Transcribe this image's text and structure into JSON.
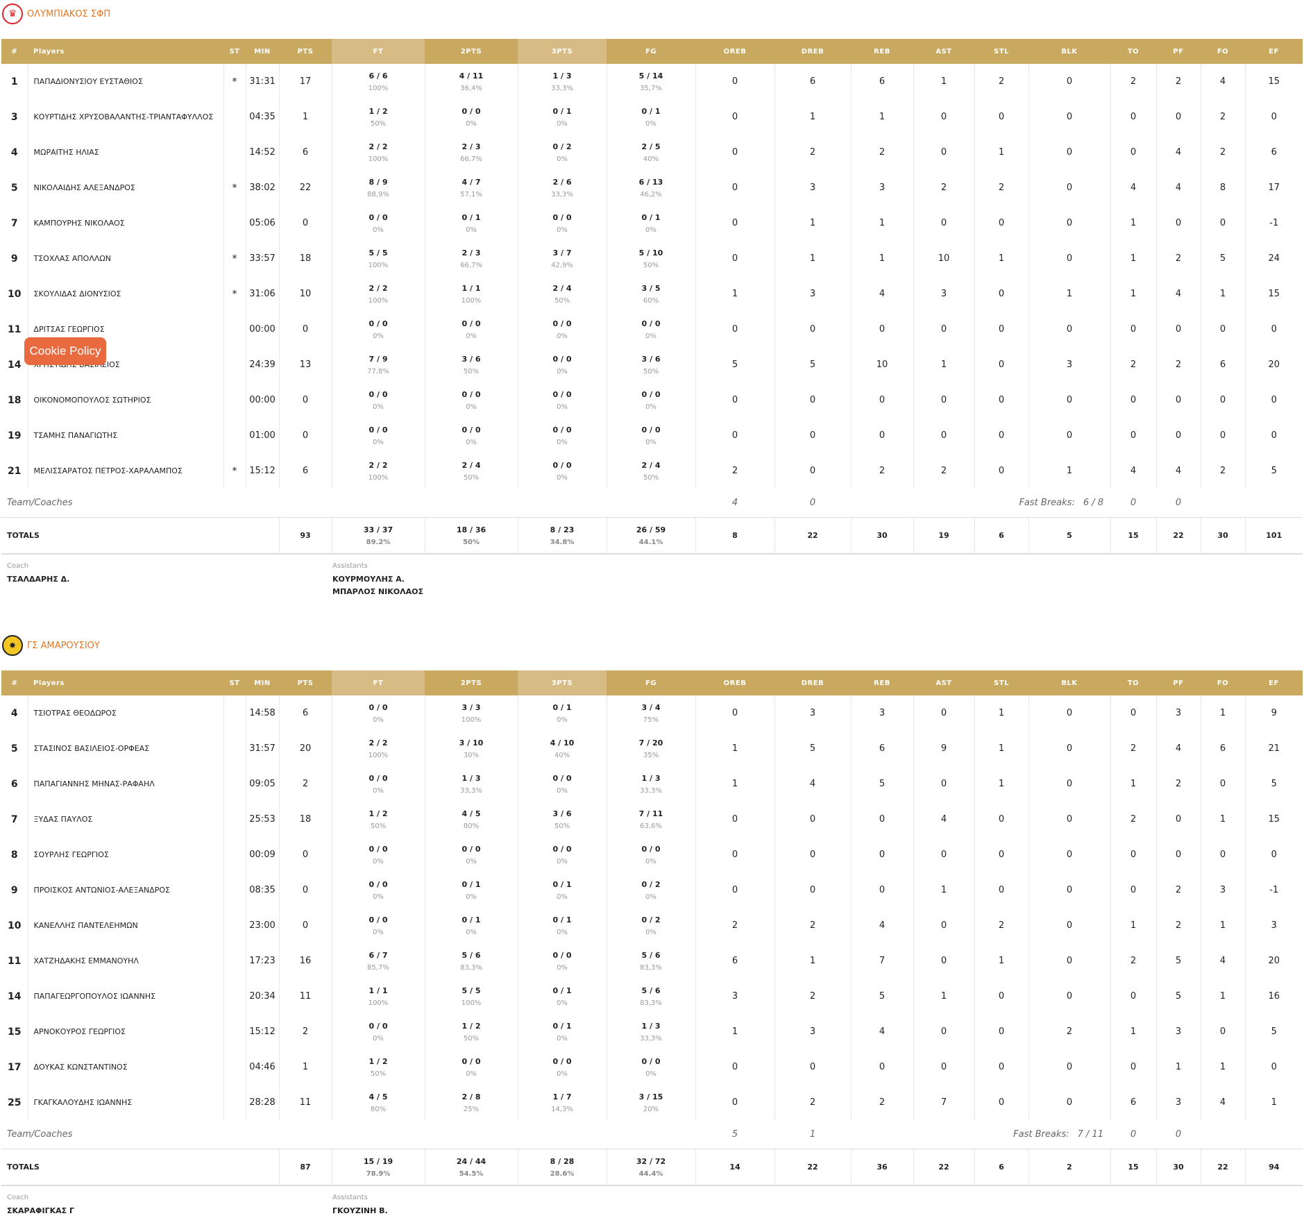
{
  "columns": [
    "#",
    "Players",
    "ST",
    "MIN",
    "PTS",
    "FT",
    "2PTS",
    "3PTS",
    "FG",
    "OREB",
    "DREB",
    "REB",
    "AST",
    "STL",
    "BLK",
    "TO",
    "PF",
    "FO",
    "EF"
  ],
  "cookie_button": "Cookie Policy",
  "labels": {
    "team_coaches": "Team/Coaches",
    "fast_breaks": "Fast Breaks:",
    "totals": "TOTALS",
    "coach": "Coach",
    "assistants": "Assistants"
  },
  "teams": [
    {
      "name": "ΟΛΥΜΠΙΑΚΟΣ ΣΦΠ",
      "logo_icon": "olympiacos-logo",
      "players": [
        {
          "num": "1",
          "name": "ΠΑΠΑΔΙΟΝΥΣΙΟΥ ΕΥΣΤΑΘΙΟΣ",
          "st": "*",
          "min": "31:31",
          "pts": "17",
          "ft": "6 / 6",
          "ft_pct": "100%",
          "p2": "4 / 11",
          "p2_pct": "36,4%",
          "p3": "1 / 3",
          "p3_pct": "33,3%",
          "fg": "5 / 14",
          "fg_pct": "35,7%",
          "oreb": "0",
          "dreb": "6",
          "reb": "6",
          "ast": "1",
          "stl": "2",
          "blk": "0",
          "to": "2",
          "pf": "2",
          "fo": "4",
          "ef": "15"
        },
        {
          "num": "3",
          "name": "ΚΟΥΡΤΙΔΗΣ ΧΡΥΣΟΒΑΛΑΝΤΗΣ-ΤΡΙΑΝΤΑΦΥΛΛΟΣ",
          "st": "",
          "min": "04:35",
          "pts": "1",
          "ft": "1 / 2",
          "ft_pct": "50%",
          "p2": "0 / 0",
          "p2_pct": "0%",
          "p3": "0 / 1",
          "p3_pct": "0%",
          "fg": "0 / 1",
          "fg_pct": "0%",
          "oreb": "0",
          "dreb": "1",
          "reb": "1",
          "ast": "0",
          "stl": "0",
          "blk": "0",
          "to": "0",
          "pf": "0",
          "fo": "2",
          "ef": "0"
        },
        {
          "num": "4",
          "name": "ΜΩΡΑΙΤΗΣ ΗΛΙΑΣ",
          "st": "",
          "min": "14:52",
          "pts": "6",
          "ft": "2 / 2",
          "ft_pct": "100%",
          "p2": "2 / 3",
          "p2_pct": "66,7%",
          "p3": "0 / 2",
          "p3_pct": "0%",
          "fg": "2 / 5",
          "fg_pct": "40%",
          "oreb": "0",
          "dreb": "2",
          "reb": "2",
          "ast": "0",
          "stl": "1",
          "blk": "0",
          "to": "0",
          "pf": "4",
          "fo": "2",
          "ef": "6"
        },
        {
          "num": "5",
          "name": "ΝΙΚΟΛΑΙΔΗΣ ΑΛΕΞΑΝΔΡΟΣ",
          "st": "*",
          "min": "38:02",
          "pts": "22",
          "ft": "8 / 9",
          "ft_pct": "88,9%",
          "p2": "4 / 7",
          "p2_pct": "57,1%",
          "p3": "2 / 6",
          "p3_pct": "33,3%",
          "fg": "6 / 13",
          "fg_pct": "46,2%",
          "oreb": "0",
          "dreb": "3",
          "reb": "3",
          "ast": "2",
          "stl": "2",
          "blk": "0",
          "to": "4",
          "pf": "4",
          "fo": "8",
          "ef": "17"
        },
        {
          "num": "7",
          "name": "ΚΑΜΠΟΥΡΗΣ ΝΙΚΟΛΑΟΣ",
          "st": "",
          "min": "05:06",
          "pts": "0",
          "ft": "0 / 0",
          "ft_pct": "0%",
          "p2": "0 / 1",
          "p2_pct": "0%",
          "p3": "0 / 0",
          "p3_pct": "0%",
          "fg": "0 / 1",
          "fg_pct": "0%",
          "oreb": "0",
          "dreb": "1",
          "reb": "1",
          "ast": "0",
          "stl": "0",
          "blk": "0",
          "to": "1",
          "pf": "0",
          "fo": "0",
          "ef": "-1"
        },
        {
          "num": "9",
          "name": "ΤΣΟΧΛΑΣ ΑΠΟΛΛΩΝ",
          "st": "*",
          "min": "33:57",
          "pts": "18",
          "ft": "5 / 5",
          "ft_pct": "100%",
          "p2": "2 / 3",
          "p2_pct": "66,7%",
          "p3": "3 / 7",
          "p3_pct": "42,9%",
          "fg": "5 / 10",
          "fg_pct": "50%",
          "oreb": "0",
          "dreb": "1",
          "reb": "1",
          "ast": "10",
          "stl": "1",
          "blk": "0",
          "to": "1",
          "pf": "2",
          "fo": "5",
          "ef": "24"
        },
        {
          "num": "10",
          "name": "ΣΚΟΥΛΙΔΑΣ ΔΙΟΝΥΣΙΟΣ",
          "st": "*",
          "min": "31:06",
          "pts": "10",
          "ft": "2 / 2",
          "ft_pct": "100%",
          "p2": "1 / 1",
          "p2_pct": "100%",
          "p3": "2 / 4",
          "p3_pct": "50%",
          "fg": "3 / 5",
          "fg_pct": "60%",
          "oreb": "1",
          "dreb": "3",
          "reb": "4",
          "ast": "3",
          "stl": "0",
          "blk": "1",
          "to": "1",
          "pf": "4",
          "fo": "1",
          "ef": "15"
        },
        {
          "num": "11",
          "name": "ΔΡΙΤΣΑΣ ΓΕΩΡΓΙΟΣ",
          "st": "",
          "min": "00:00",
          "pts": "0",
          "ft": "0 / 0",
          "ft_pct": "0%",
          "p2": "0 / 0",
          "p2_pct": "0%",
          "p3": "0 / 0",
          "p3_pct": "0%",
          "fg": "0 / 0",
          "fg_pct": "0%",
          "oreb": "0",
          "dreb": "0",
          "reb": "0",
          "ast": "0",
          "stl": "0",
          "blk": "0",
          "to": "0",
          "pf": "0",
          "fo": "0",
          "ef": "0"
        },
        {
          "num": "14",
          "name": "ΧΡΗΣΤΙΔΗΣ ΒΑΣΙΛΕΙΟΣ",
          "st": "",
          "min": "24:39",
          "pts": "13",
          "ft": "7 / 9",
          "ft_pct": "77,8%",
          "p2": "3 / 6",
          "p2_pct": "50%",
          "p3": "0 / 0",
          "p3_pct": "0%",
          "fg": "3 / 6",
          "fg_pct": "50%",
          "oreb": "5",
          "dreb": "5",
          "reb": "10",
          "ast": "1",
          "stl": "0",
          "blk": "3",
          "to": "2",
          "pf": "2",
          "fo": "6",
          "ef": "20"
        },
        {
          "num": "18",
          "name": "ΟΙΚΟΝΟΜΟΠΟΥΛΟΣ ΣΩΤΗΡΙΟΣ",
          "st": "",
          "min": "00:00",
          "pts": "0",
          "ft": "0 / 0",
          "ft_pct": "0%",
          "p2": "0 / 0",
          "p2_pct": "0%",
          "p3": "0 / 0",
          "p3_pct": "0%",
          "fg": "0 / 0",
          "fg_pct": "0%",
          "oreb": "0",
          "dreb": "0",
          "reb": "0",
          "ast": "0",
          "stl": "0",
          "blk": "0",
          "to": "0",
          "pf": "0",
          "fo": "0",
          "ef": "0"
        },
        {
          "num": "19",
          "name": "ΤΣΑΜΗΣ ΠΑΝΑΓΙΩΤΗΣ",
          "st": "",
          "min": "01:00",
          "pts": "0",
          "ft": "0 / 0",
          "ft_pct": "0%",
          "p2": "0 / 0",
          "p2_pct": "0%",
          "p3": "0 / 0",
          "p3_pct": "0%",
          "fg": "0 / 0",
          "fg_pct": "0%",
          "oreb": "0",
          "dreb": "0",
          "reb": "0",
          "ast": "0",
          "stl": "0",
          "blk": "0",
          "to": "0",
          "pf": "0",
          "fo": "0",
          "ef": "0"
        },
        {
          "num": "21",
          "name": "ΜΕΛΙΣΣΑΡΑΤΟΣ ΠΕΤΡΟΣ-ΧΑΡΑΛΑΜΠΟΣ",
          "st": "*",
          "min": "15:12",
          "pts": "6",
          "ft": "2 / 2",
          "ft_pct": "100%",
          "p2": "2 / 4",
          "p2_pct": "50%",
          "p3": "0 / 0",
          "p3_pct": "0%",
          "fg": "2 / 4",
          "fg_pct": "50%",
          "oreb": "2",
          "dreb": "0",
          "reb": "2",
          "ast": "2",
          "stl": "0",
          "blk": "1",
          "to": "4",
          "pf": "4",
          "fo": "2",
          "ef": "5"
        }
      ],
      "team_row": {
        "oreb": "4",
        "dreb": "0",
        "fast_breaks": "6 / 8",
        "to": "0",
        "pf": "0"
      },
      "totals": {
        "pts": "93",
        "ft": "33 / 37",
        "ft_pct": "89.2%",
        "p2": "18 / 36",
        "p2_pct": "50%",
        "p3": "8 / 23",
        "p3_pct": "34.8%",
        "fg": "26 / 59",
        "fg_pct": "44.1%",
        "oreb": "8",
        "dreb": "22",
        "reb": "30",
        "ast": "19",
        "stl": "6",
        "blk": "5",
        "to": "15",
        "pf": "22",
        "fo": "30",
        "ef": "101"
      },
      "coach": "ΤΣΑΛΔΑΡΗΣ Δ.",
      "assistants": [
        "ΚΟΥΡΜΟΥΛΗΣ Α.",
        "ΜΠΑΡΛΟΣ ΝΙΚΟΛΑΟΣ"
      ]
    },
    {
      "name": "ΓΣ ΑΜΑΡΟΥΣΙΟΥ",
      "logo_icon": "amarousiou-logo",
      "players": [
        {
          "num": "4",
          "name": "ΤΣΙΟΤΡΑΣ ΘΕΟΔΩΡΟΣ",
          "st": "",
          "min": "14:58",
          "pts": "6",
          "ft": "0 / 0",
          "ft_pct": "0%",
          "p2": "3 / 3",
          "p2_pct": "100%",
          "p3": "0 / 1",
          "p3_pct": "0%",
          "fg": "3 / 4",
          "fg_pct": "75%",
          "oreb": "0",
          "dreb": "3",
          "reb": "3",
          "ast": "0",
          "stl": "1",
          "blk": "0",
          "to": "0",
          "pf": "3",
          "fo": "1",
          "ef": "9"
        },
        {
          "num": "5",
          "name": "ΣΤΑΣΙΝΟΣ ΒΑΣΙΛΕΙΟΣ-ΟΡΦΕΑΣ",
          "st": "",
          "min": "31:57",
          "pts": "20",
          "ft": "2 / 2",
          "ft_pct": "100%",
          "p2": "3 / 10",
          "p2_pct": "30%",
          "p3": "4 / 10",
          "p3_pct": "40%",
          "fg": "7 / 20",
          "fg_pct": "35%",
          "oreb": "1",
          "dreb": "5",
          "reb": "6",
          "ast": "9",
          "stl": "1",
          "blk": "0",
          "to": "2",
          "pf": "4",
          "fo": "6",
          "ef": "21"
        },
        {
          "num": "6",
          "name": "ΠΑΠΑΓΙΑΝΝΗΣ ΜΗΝΑΣ-ΡΑΦΑΗΛ",
          "st": "",
          "min": "09:05",
          "pts": "2",
          "ft": "0 / 0",
          "ft_pct": "0%",
          "p2": "1 / 3",
          "p2_pct": "33,3%",
          "p3": "0 / 0",
          "p3_pct": "0%",
          "fg": "1 / 3",
          "fg_pct": "33,3%",
          "oreb": "1",
          "dreb": "4",
          "reb": "5",
          "ast": "0",
          "stl": "1",
          "blk": "0",
          "to": "1",
          "pf": "2",
          "fo": "0",
          "ef": "5"
        },
        {
          "num": "7",
          "name": "ΞΥΔΑΣ ΠΑΥΛΟΣ",
          "st": "",
          "min": "25:53",
          "pts": "18",
          "ft": "1 / 2",
          "ft_pct": "50%",
          "p2": "4 / 5",
          "p2_pct": "80%",
          "p3": "3 / 6",
          "p3_pct": "50%",
          "fg": "7 / 11",
          "fg_pct": "63,6%",
          "oreb": "0",
          "dreb": "0",
          "reb": "0",
          "ast": "4",
          "stl": "0",
          "blk": "0",
          "to": "2",
          "pf": "0",
          "fo": "1",
          "ef": "15"
        },
        {
          "num": "8",
          "name": "ΣΟΥΡΛΗΣ ΓΕΩΡΓΙΟΣ",
          "st": "",
          "min": "00:09",
          "pts": "0",
          "ft": "0 / 0",
          "ft_pct": "0%",
          "p2": "0 / 0",
          "p2_pct": "0%",
          "p3": "0 / 0",
          "p3_pct": "0%",
          "fg": "0 / 0",
          "fg_pct": "0%",
          "oreb": "0",
          "dreb": "0",
          "reb": "0",
          "ast": "0",
          "stl": "0",
          "blk": "0",
          "to": "0",
          "pf": "0",
          "fo": "0",
          "ef": "0"
        },
        {
          "num": "9",
          "name": "ΠΡΟΙΣΚΟΣ ΑΝΤΩΝΙΟΣ-ΑΛΕΞΑΝΔΡΟΣ",
          "st": "",
          "min": "08:35",
          "pts": "0",
          "ft": "0 / 0",
          "ft_pct": "0%",
          "p2": "0 / 1",
          "p2_pct": "0%",
          "p3": "0 / 1",
          "p3_pct": "0%",
          "fg": "0 / 2",
          "fg_pct": "0%",
          "oreb": "0",
          "dreb": "0",
          "reb": "0",
          "ast": "1",
          "stl": "0",
          "blk": "0",
          "to": "0",
          "pf": "2",
          "fo": "3",
          "ef": "-1"
        },
        {
          "num": "10",
          "name": "ΚΑΝΕΛΛΗΣ ΠΑΝΤΕΛΕΗΜΩΝ",
          "st": "",
          "min": "23:00",
          "pts": "0",
          "ft": "0 / 0",
          "ft_pct": "0%",
          "p2": "0 / 1",
          "p2_pct": "0%",
          "p3": "0 / 1",
          "p3_pct": "0%",
          "fg": "0 / 2",
          "fg_pct": "0%",
          "oreb": "2",
          "dreb": "2",
          "reb": "4",
          "ast": "0",
          "stl": "2",
          "blk": "0",
          "to": "1",
          "pf": "2",
          "fo": "1",
          "ef": "3"
        },
        {
          "num": "11",
          "name": "ΧΑΤΖΗΔΑΚΗΣ ΕΜΜΑΝΟΥΗΛ",
          "st": "",
          "min": "17:23",
          "pts": "16",
          "ft": "6 / 7",
          "ft_pct": "85,7%",
          "p2": "5 / 6",
          "p2_pct": "83,3%",
          "p3": "0 / 0",
          "p3_pct": "0%",
          "fg": "5 / 6",
          "fg_pct": "83,3%",
          "oreb": "6",
          "dreb": "1",
          "reb": "7",
          "ast": "0",
          "stl": "1",
          "blk": "0",
          "to": "2",
          "pf": "5",
          "fo": "4",
          "ef": "20"
        },
        {
          "num": "14",
          "name": "ΠΑΠΑΓΕΩΡΓΟΠΟΥΛΟΣ ΙΩΑΝΝΗΣ",
          "st": "",
          "min": "20:34",
          "pts": "11",
          "ft": "1 / 1",
          "ft_pct": "100%",
          "p2": "5 / 5",
          "p2_pct": "100%",
          "p3": "0 / 1",
          "p3_pct": "0%",
          "fg": "5 / 6",
          "fg_pct": "83,3%",
          "oreb": "3",
          "dreb": "2",
          "reb": "5",
          "ast": "1",
          "stl": "0",
          "blk": "0",
          "to": "0",
          "pf": "5",
          "fo": "1",
          "ef": "16"
        },
        {
          "num": "15",
          "name": "ΑΡΝΟΚΟΥΡΟΣ ΓΕΩΡΓΙΟΣ",
          "st": "",
          "min": "15:12",
          "pts": "2",
          "ft": "0 / 0",
          "ft_pct": "0%",
          "p2": "1 / 2",
          "p2_pct": "50%",
          "p3": "0 / 1",
          "p3_pct": "0%",
          "fg": "1 / 3",
          "fg_pct": "33,3%",
          "oreb": "1",
          "dreb": "3",
          "reb": "4",
          "ast": "0",
          "stl": "0",
          "blk": "2",
          "to": "1",
          "pf": "3",
          "fo": "0",
          "ef": "5"
        },
        {
          "num": "17",
          "name": "ΔΟΥΚΑΣ ΚΩΝΣΤΑΝΤΙΝΟΣ",
          "st": "",
          "min": "04:46",
          "pts": "1",
          "ft": "1 / 2",
          "ft_pct": "50%",
          "p2": "0 / 0",
          "p2_pct": "0%",
          "p3": "0 / 0",
          "p3_pct": "0%",
          "fg": "0 / 0",
          "fg_pct": "0%",
          "oreb": "0",
          "dreb": "0",
          "reb": "0",
          "ast": "0",
          "stl": "0",
          "blk": "0",
          "to": "0",
          "pf": "1",
          "fo": "1",
          "ef": "0"
        },
        {
          "num": "25",
          "name": "ΓΚΑΓΚΑΛΟΥΔΗΣ ΙΩΑΝΝΗΣ",
          "st": "",
          "min": "28:28",
          "pts": "11",
          "ft": "4 / 5",
          "ft_pct": "80%",
          "p2": "2 / 8",
          "p2_pct": "25%",
          "p3": "1 / 7",
          "p3_pct": "14,3%",
          "fg": "3 / 15",
          "fg_pct": "20%",
          "oreb": "0",
          "dreb": "2",
          "reb": "2",
          "ast": "7",
          "stl": "0",
          "blk": "0",
          "to": "6",
          "pf": "3",
          "fo": "4",
          "ef": "1"
        }
      ],
      "team_row": {
        "oreb": "5",
        "dreb": "1",
        "fast_breaks": "7 / 11",
        "to": "0",
        "pf": "0"
      },
      "totals": {
        "pts": "87",
        "ft": "15 / 19",
        "ft_pct": "78.9%",
        "p2": "24 / 44",
        "p2_pct": "54.5%",
        "p3": "8 / 28",
        "p3_pct": "28.6%",
        "fg": "32 / 72",
        "fg_pct": "44.4%",
        "oreb": "14",
        "dreb": "22",
        "reb": "36",
        "ast": "22",
        "stl": "6",
        "blk": "2",
        "to": "15",
        "pf": "30",
        "fo": "22",
        "ef": "94"
      },
      "coach": "ΣΚΑΡΑΦΙΓΚΑΣ Γ",
      "assistants": [
        "ΓΚΟΥΖΙΝΗ Β."
      ]
    }
  ]
}
